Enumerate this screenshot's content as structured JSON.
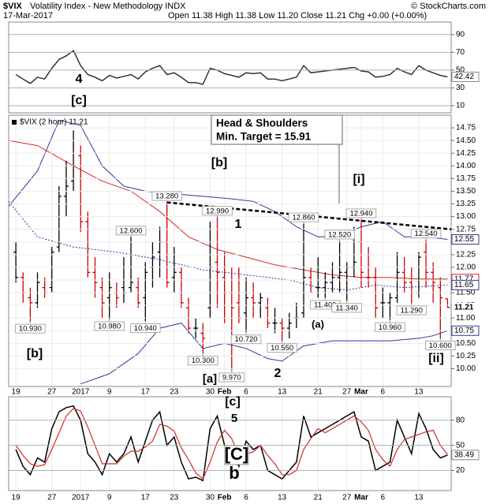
{
  "header": {
    "symbol": "$VIX",
    "name": "Volatility Index - New Methodology INDX",
    "copyright": "© StockCharts.com",
    "date": "17-Mar-2017",
    "quote": "Open 11.38 High 11.38 Low 11.20 Close 11.21 Chg +0.00 (+0.00%)"
  },
  "chart_data": [
    {
      "type": "line",
      "x": [
        0,
        1,
        2,
        3,
        4,
        5,
        6,
        7,
        8,
        9,
        10,
        11,
        12,
        13,
        14,
        15,
        16,
        17,
        18,
        19,
        20,
        21,
        22,
        23,
        24,
        25,
        26,
        27,
        28,
        29,
        30,
        31,
        32,
        33,
        34,
        35,
        36,
        37,
        38,
        39,
        40,
        41,
        42,
        43,
        44,
        45,
        46,
        47,
        48,
        49,
        50,
        51,
        52,
        53,
        54,
        55,
        56,
        57,
        58,
        59,
        60
      ],
      "series": [
        {
          "color": "#333333",
          "values": [
            45,
            40,
            35,
            42,
            40,
            52,
            62,
            66,
            72,
            55,
            45,
            42,
            38,
            44,
            41,
            43,
            45,
            40,
            48,
            52,
            55,
            45,
            47,
            42,
            36,
            36,
            34,
            52,
            50,
            46,
            44,
            42,
            47,
            46,
            47,
            40,
            40,
            38,
            40,
            42,
            55,
            47,
            48,
            49,
            50,
            51,
            52,
            53,
            49,
            48,
            42,
            43,
            45,
            52,
            48,
            45,
            55,
            50,
            47,
            44,
            42.42
          ]
        }
      ],
      "xlim": [
        -1,
        60.5
      ],
      "ylim": [
        2,
        104
      ],
      "yticks": [
        10,
        30,
        50,
        70,
        90
      ],
      "annotations": [
        {
          "text": "4",
          "color": "#9933cc"
        },
        {
          "text": "[c]",
          "color": "#cc0000"
        }
      ]
    },
    {
      "type": "ohlc",
      "legend_label": "$VIX (2 hour) 11.21",
      "x": [
        0,
        1,
        2,
        3,
        4,
        5,
        6,
        7,
        8,
        9,
        10,
        11,
        12,
        13,
        14,
        15,
        16,
        17,
        18,
        19,
        20,
        21,
        22,
        23,
        24,
        25,
        26,
        27,
        28,
        29,
        30,
        31,
        32,
        33,
        34,
        35,
        36,
        37,
        38,
        39,
        40,
        41,
        42,
        43,
        44,
        45,
        46,
        47,
        48,
        49,
        50,
        51,
        52,
        53,
        54,
        55,
        56,
        57,
        58,
        59,
        60
      ],
      "open": [
        12.3,
        11.8,
        11.4,
        11.3,
        11.6,
        11.6,
        12.4,
        13.4,
        13.7,
        14.2,
        12.9,
        11.9,
        11.6,
        11.4,
        11.5,
        11.6,
        11.6,
        11.6,
        11.4,
        12.0,
        12.3,
        12.5,
        11.8,
        11.9,
        11.2,
        10.8,
        10.7,
        11.2,
        12.1,
        11.8,
        11.5,
        11.3,
        11.1,
        11.4,
        11.3,
        11.2,
        10.9,
        10.9,
        10.8,
        11.0,
        11.1,
        11.8,
        11.6,
        11.6,
        11.7,
        11.8,
        11.9,
        12.0,
        12.5,
        11.8,
        11.8,
        11.3,
        11.3,
        11.4,
        11.9,
        11.7,
        11.5,
        12.3,
        11.9,
        11.6,
        11.38
      ],
      "high": [
        12.5,
        11.9,
        11.6,
        11.9,
        11.8,
        12.4,
        13.6,
        14.1,
        14.7,
        14.4,
        13.1,
        12.2,
        11.8,
        11.9,
        11.7,
        12.2,
        12.6,
        11.8,
        12.1,
        12.5,
        12.8,
        13.28,
        12.4,
        12.0,
        11.4,
        11.0,
        10.9,
        12.9,
        12.99,
        12.3,
        12.0,
        12.0,
        11.8,
        11.7,
        11.5,
        11.4,
        11.2,
        11.0,
        11.1,
        11.3,
        12.86,
        12.0,
        12.2,
        11.9,
        12.1,
        12.52,
        12.1,
        12.8,
        12.94,
        12.4,
        12.0,
        11.6,
        11.5,
        12.3,
        12.2,
        12.0,
        12.3,
        12.54,
        12.1,
        11.8,
        11.38
      ],
      "low": [
        11.7,
        11.3,
        10.93,
        11.2,
        11.4,
        11.5,
        12.3,
        13.0,
        13.5,
        12.7,
        11.8,
        11.4,
        11.0,
        10.98,
        11.2,
        11.3,
        11.5,
        11.2,
        10.94,
        11.6,
        11.8,
        11.6,
        11.5,
        11.2,
        10.7,
        10.6,
        10.3,
        11.0,
        11.2,
        10.9,
        9.97,
        10.9,
        10.72,
        11.0,
        11.0,
        10.8,
        10.7,
        10.55,
        10.6,
        10.8,
        11.0,
        11.5,
        11.4,
        11.4,
        11.5,
        11.5,
        11.34,
        11.8,
        11.6,
        11.6,
        11.0,
        11.0,
        10.96,
        11.3,
        11.5,
        11.29,
        11.4,
        11.6,
        11.3,
        10.6,
        11.2
      ],
      "close": [
        11.8,
        11.5,
        11.3,
        11.7,
        11.5,
        12.3,
        13.4,
        13.6,
        14.0,
        12.9,
        11.9,
        11.7,
        11.3,
        11.6,
        11.4,
        11.5,
        11.7,
        11.3,
        11.9,
        12.2,
        12.5,
        11.7,
        11.9,
        11.3,
        10.8,
        10.8,
        10.6,
        12.0,
        11.9,
        11.5,
        11.2,
        11.0,
        11.4,
        11.3,
        11.4,
        10.9,
        10.9,
        10.8,
        10.9,
        11.0,
        11.8,
        11.5,
        11.6,
        11.7,
        11.8,
        11.9,
        12.0,
        12.1,
        11.9,
        11.8,
        11.2,
        11.3,
        11.4,
        11.9,
        11.7,
        11.5,
        12.2,
        11.9,
        11.7,
        11.4,
        11.21
      ],
      "up_color": "#000000",
      "down_color": "#cc0000",
      "overlays": [
        {
          "color": "#2a3a9a",
          "style": "solid",
          "x": [
            -1,
            3,
            6,
            9,
            12,
            15,
            18,
            22,
            26,
            30,
            33,
            36,
            39,
            42,
            45,
            48,
            51,
            54,
            57,
            60
          ],
          "values": [
            13.2,
            13.9,
            14.9,
            14.8,
            14.0,
            13.6,
            13.5,
            13.45,
            13.4,
            13.35,
            13.3,
            13.1,
            12.8,
            12.6,
            12.6,
            12.8,
            12.9,
            12.6,
            12.6,
            12.55
          ]
        },
        {
          "color": "#d42a2a",
          "style": "solid",
          "x": [
            -1,
            3,
            8,
            12,
            16,
            20,
            24,
            28,
            32,
            36,
            40,
            44,
            48,
            52,
            56,
            60
          ],
          "values": [
            14.5,
            14.4,
            14.0,
            13.7,
            13.5,
            13.1,
            12.6,
            12.35,
            12.2,
            12.05,
            11.95,
            11.85,
            11.8,
            11.8,
            11.77,
            11.77
          ]
        },
        {
          "color": "#2a3a9a",
          "style": "dotted",
          "x": [
            -1,
            3,
            8,
            14,
            20,
            26,
            32,
            38,
            42,
            46,
            50,
            54,
            60
          ],
          "values": [
            13.3,
            12.6,
            12.4,
            12.3,
            12.15,
            11.95,
            11.85,
            11.75,
            11.6,
            11.55,
            11.65,
            11.6,
            11.65
          ]
        },
        {
          "color": "#2a3a9a",
          "style": "solid",
          "x": [
            9,
            13,
            17,
            20,
            23,
            26,
            29,
            32,
            35,
            37,
            40,
            44,
            48,
            52,
            56,
            58,
            60
          ],
          "values": [
            9.7,
            9.9,
            10.3,
            10.8,
            10.9,
            10.4,
            10.5,
            10.4,
            10.2,
            10.15,
            10.45,
            10.55,
            10.55,
            10.55,
            10.6,
            10.65,
            10.75
          ]
        }
      ],
      "neckline": {
        "x": [
          21,
          60.5
        ],
        "values": [
          13.28,
          12.75
        ]
      },
      "point_labels": [
        {
          "x": 2,
          "value": 10.93,
          "label": "10.930"
        },
        {
          "x": 13,
          "value": 10.98,
          "label": "10.980"
        },
        {
          "x": 16,
          "value": 12.6,
          "label": "12.600"
        },
        {
          "x": 18,
          "value": 10.94,
          "label": "10.940"
        },
        {
          "x": 21,
          "value": 13.28,
          "label": "13.280"
        },
        {
          "x": 26,
          "value": 10.3,
          "label": "10.300"
        },
        {
          "x": 28,
          "value": 12.99,
          "label": "12.990"
        },
        {
          "x": 30,
          "value": 9.97,
          "label": "9.970"
        },
        {
          "x": 32,
          "value": 10.72,
          "label": "10.720"
        },
        {
          "x": 37,
          "value": 10.55,
          "label": "10.550"
        },
        {
          "x": 40,
          "value": 12.86,
          "label": "12.860"
        },
        {
          "x": 43,
          "value": 11.4,
          "label": "11.400"
        },
        {
          "x": 45,
          "value": 12.52,
          "label": "12.520"
        },
        {
          "x": 46,
          "value": 11.34,
          "label": "11.340"
        },
        {
          "x": 48,
          "value": 12.94,
          "label": "12.940"
        },
        {
          "x": 52,
          "value": 10.96,
          "label": "10.960"
        },
        {
          "x": 55,
          "value": 11.29,
          "label": "11.290"
        },
        {
          "x": 57,
          "value": 12.54,
          "label": "12.540"
        },
        {
          "x": 59,
          "value": 10.6,
          "label": "10.600"
        }
      ],
      "annotations": [
        {
          "text": "[b]",
          "color": "#cc0000"
        },
        {
          "text": "[i]",
          "color": "#cc0000"
        },
        {
          "text": "1",
          "color": "#9933cc"
        },
        {
          "text": "(a)",
          "color": "#22aa22"
        },
        {
          "text": "[a]",
          "color": "#cc0000"
        },
        {
          "text": "2",
          "color": "#9933cc"
        },
        {
          "text": "[ii]",
          "color": "#cc0000"
        },
        {
          "text": "[b]",
          "color": "#cc0000"
        }
      ],
      "callout": [
        "Head & Shoulders",
        "Min. Target = 15.91"
      ],
      "xlim": [
        -1,
        60.5
      ],
      "ylim": [
        9.65,
        15.0
      ],
      "xticks": [
        {
          "value": 0,
          "label": "19"
        },
        {
          "value": 5,
          "label": "27"
        },
        {
          "value": 9,
          "label": "2017"
        },
        {
          "value": 13,
          "label": "9"
        },
        {
          "value": 18,
          "label": "17"
        },
        {
          "value": 22,
          "label": "23"
        },
        {
          "value": 27,
          "label": "30"
        },
        {
          "value": 29,
          "label": "Feb"
        },
        {
          "value": 32,
          "label": "6"
        },
        {
          "value": 37,
          "label": "13"
        },
        {
          "value": 42,
          "label": "21"
        },
        {
          "value": 46,
          "label": "27"
        },
        {
          "value": 48,
          "label": "Mar"
        },
        {
          "value": 51,
          "label": "6"
        },
        {
          "value": 56,
          "label": "13"
        }
      ],
      "yticks": [
        {
          "value": 10,
          "label": "10.00"
        },
        {
          "value": 10.25,
          "label": "10.25"
        },
        {
          "value": 10.5,
          "label": "10.50"
        },
        {
          "value": 10.75,
          "label": "10.75"
        },
        {
          "value": 11,
          "label": "11.00"
        },
        {
          "value": 11.25,
          "label": "11.25"
        },
        {
          "value": 11.5,
          "label": "11.50"
        },
        {
          "value": 11.75,
          "label": "11.75"
        },
        {
          "value": 12,
          "label": "12.00"
        },
        {
          "value": 12.25,
          "label": "12.25"
        },
        {
          "value": 12.5,
          "label": "12.50"
        },
        {
          "value": 12.75,
          "label": "12.75"
        },
        {
          "value": 13,
          "label": "13.00"
        },
        {
          "value": 13.25,
          "label": "13.25"
        },
        {
          "value": 13.5,
          "label": "13.50"
        },
        {
          "value": 13.75,
          "label": "13.75"
        },
        {
          "value": 14,
          "label": "14.00"
        },
        {
          "value": 14.25,
          "label": "14.25"
        },
        {
          "value": 14.5,
          "label": "14.50"
        },
        {
          "value": 14.75,
          "label": "14.75"
        }
      ],
      "grid": true
    },
    {
      "type": "line",
      "x": [
        0,
        1,
        2,
        3,
        4,
        5,
        6,
        7,
        8,
        9,
        10,
        11,
        12,
        13,
        14,
        15,
        16,
        17,
        18,
        19,
        20,
        21,
        22,
        23,
        24,
        25,
        26,
        27,
        28,
        29,
        30,
        31,
        32,
        33,
        34,
        35,
        36,
        37,
        38,
        39,
        40,
        41,
        42,
        43,
        44,
        45,
        46,
        47,
        48,
        49,
        50,
        51,
        52,
        53,
        54,
        55,
        56,
        57,
        58,
        59,
        60
      ],
      "series": [
        {
          "color": "#000000",
          "values": [
            45,
            25,
            15,
            35,
            30,
            70,
            90,
            95,
            97,
            80,
            40,
            30,
            15,
            40,
            30,
            40,
            60,
            30,
            55,
            80,
            90,
            50,
            60,
            30,
            10,
            12,
            8,
            70,
            85,
            50,
            40,
            25,
            55,
            45,
            50,
            20,
            15,
            10,
            20,
            30,
            85,
            60,
            65,
            70,
            75,
            80,
            85,
            90,
            60,
            55,
            20,
            25,
            30,
            80,
            60,
            40,
            88,
            70,
            45,
            35,
            38.49
          ]
        },
        {
          "color": "#d42a2a",
          "values": [
            50,
            38,
            28,
            25,
            27,
            45,
            65,
            85,
            94,
            91,
            72,
            50,
            28,
            28,
            28,
            37,
            43,
            43,
            48,
            55,
            75,
            73,
            67,
            47,
            33,
            17,
            10,
            30,
            54,
            68,
            58,
            38,
            40,
            42,
            50,
            38,
            28,
            15,
            15,
            20,
            45,
            58,
            70,
            65,
            70,
            75,
            80,
            85,
            78,
            68,
            45,
            33,
            25,
            45,
            57,
            60,
            63,
            66,
            68,
            50,
            39
          ]
        }
      ],
      "annotations": [
        {
          "text": "[c]",
          "color": "#cc0000"
        },
        {
          "text": "5",
          "color": "#9933cc"
        },
        {
          "text": "[C]",
          "color": "#1a1aff"
        },
        {
          "text": "b",
          "color": "#dd0000"
        }
      ],
      "xlim": [
        -1,
        60.5
      ],
      "ylim": [
        -4,
        108
      ],
      "yticks": [
        20,
        50,
        80
      ],
      "xticks": [
        {
          "value": 0,
          "label": "19"
        },
        {
          "value": 5,
          "label": "27"
        },
        {
          "value": 9,
          "label": "2017"
        },
        {
          "value": 13,
          "label": "9"
        },
        {
          "value": 18,
          "label": "17"
        },
        {
          "value": 22,
          "label": "23"
        },
        {
          "value": 27,
          "label": "30"
        },
        {
          "value": 29,
          "label": "Feb"
        },
        {
          "value": 32,
          "label": "6"
        },
        {
          "value": 37,
          "label": "13"
        },
        {
          "value": 42,
          "label": "21"
        },
        {
          "value": 46,
          "label": "27"
        },
        {
          "value": 48,
          "label": "Mar"
        },
        {
          "value": 51,
          "label": "6"
        },
        {
          "value": 56,
          "label": "13"
        }
      ],
      "grid": true
    }
  ]
}
